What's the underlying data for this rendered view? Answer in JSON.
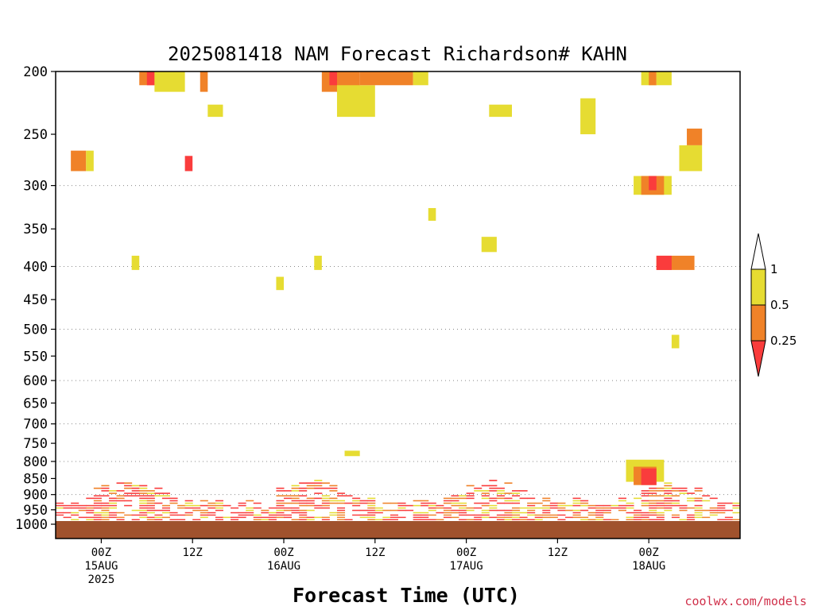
{
  "chart_data": {
    "type": "heatmap",
    "title": "2025081418 NAM Forecast Richardson# KAHN",
    "xlabel": "Forecast Time (UTC)",
    "ylabel": "",
    "y_scale": "log (pressure, inverted)",
    "ylim": [
      1000,
      200
    ],
    "y_ticks": [
      200,
      250,
      300,
      350,
      400,
      450,
      500,
      550,
      600,
      650,
      700,
      750,
      800,
      850,
      900,
      950,
      1000
    ],
    "grid_lines_at": [
      300,
      400,
      500,
      600,
      700,
      800,
      900
    ],
    "xlim": [
      "2025-08-14 18Z",
      "2025-08-18 12Z"
    ],
    "x_ticks": [
      {
        "at": "2025-08-15 00Z",
        "lines": [
          "00Z",
          "15AUG",
          "2025"
        ]
      },
      {
        "at": "2025-08-15 12Z",
        "lines": [
          "12Z"
        ]
      },
      {
        "at": "2025-08-16 00Z",
        "lines": [
          "00Z",
          "16AUG"
        ]
      },
      {
        "at": "2025-08-16 12Z",
        "lines": [
          "12Z"
        ]
      },
      {
        "at": "2025-08-17 00Z",
        "lines": [
          "00Z",
          "17AUG"
        ]
      },
      {
        "at": "2025-08-17 12Z",
        "lines": [
          "12Z"
        ]
      },
      {
        "at": "2025-08-18 00Z",
        "lines": [
          "00Z",
          "18AUG"
        ]
      }
    ],
    "legend": {
      "placement": "right",
      "levels": [
        "1",
        "0.5",
        "0.25"
      ],
      "bins": [
        {
          "range": "> 1",
          "color": "#ffffff"
        },
        {
          "range": "0.5 - 1",
          "color": "#e6dc32"
        },
        {
          "range": "0.25 - 0.5",
          "color": "#f08228"
        },
        {
          "range": "< 0.25",
          "color": "#fa3c3c"
        }
      ]
    },
    "surface_color": "#a0522d",
    "regions": [
      {
        "t0": "2025-08-15 05Z",
        "t1": "2025-08-15 07Z",
        "p0": 200,
        "p1": 210,
        "cat": "0.25-0.5"
      },
      {
        "t0": "2025-08-15 06Z",
        "t1": "2025-08-15 07Z",
        "p0": 200,
        "p1": 210,
        "cat": "<0.25"
      },
      {
        "t0": "2025-08-15 07Z",
        "t1": "2025-08-15 11Z",
        "p0": 200,
        "p1": 215,
        "cat": "0.5-1"
      },
      {
        "t0": "2025-08-15 13Z",
        "t1": "2025-08-15 14Z",
        "p0": 200,
        "p1": 215,
        "cat": "0.25-0.5"
      },
      {
        "t0": "2025-08-16 05Z",
        "t1": "2025-08-16 10Z",
        "p0": 200,
        "p1": 215,
        "cat": "0.25-0.5"
      },
      {
        "t0": "2025-08-16 06Z",
        "t1": "2025-08-16 07Z",
        "p0": 200,
        "p1": 210,
        "cat": "<0.25"
      },
      {
        "t0": "2025-08-16 07Z",
        "t1": "2025-08-16 12Z",
        "p0": 210,
        "p1": 235,
        "cat": "0.5-1"
      },
      {
        "t0": "2025-08-16 10Z",
        "t1": "2025-08-16 17Z",
        "p0": 200,
        "p1": 210,
        "cat": "0.25-0.5"
      },
      {
        "t0": "2025-08-16 17Z",
        "t1": "2025-08-16 19Z",
        "p0": 200,
        "p1": 210,
        "cat": "0.5-1"
      },
      {
        "t0": "2025-08-15 14Z",
        "t1": "2025-08-15 16Z",
        "p0": 225,
        "p1": 235,
        "cat": "0.5-1"
      },
      {
        "t0": "2025-08-17 03Z",
        "t1": "2025-08-17 06Z",
        "p0": 225,
        "p1": 235,
        "cat": "0.5-1"
      },
      {
        "t0": "2025-08-17 15Z",
        "t1": "2025-08-17 17Z",
        "p0": 220,
        "p1": 250,
        "cat": "0.5-1"
      },
      {
        "t0": "2025-08-17 23Z",
        "t1": "2025-08-18 01Z",
        "p0": 200,
        "p1": 210,
        "cat": "0.5-1"
      },
      {
        "t0": "2025-08-18 00Z",
        "t1": "2025-08-18 01Z",
        "p0": 200,
        "p1": 210,
        "cat": "0.25-0.5"
      },
      {
        "t0": "2025-08-18 01Z",
        "t1": "2025-08-18 03Z",
        "p0": 200,
        "p1": 210,
        "cat": "0.5-1"
      },
      {
        "t0": "2025-08-18 05Z",
        "t1": "2025-08-18 07Z",
        "p0": 245,
        "p1": 260,
        "cat": "0.25-0.5"
      },
      {
        "t0": "2025-08-18 04Z",
        "t1": "2025-08-18 07Z",
        "p0": 260,
        "p1": 285,
        "cat": "0.5-1"
      },
      {
        "t0": "2025-08-14 20Z",
        "t1": "2025-08-14 22Z",
        "p0": 265,
        "p1": 285,
        "cat": "0.25-0.5"
      },
      {
        "t0": "2025-08-14 22Z",
        "t1": "2025-08-14 23Z",
        "p0": 265,
        "p1": 285,
        "cat": "0.5-1"
      },
      {
        "t0": "2025-08-15 11Z",
        "t1": "2025-08-15 12Z",
        "p0": 270,
        "p1": 285,
        "cat": "<0.25"
      },
      {
        "t0": "2025-08-17 22Z",
        "t1": "2025-08-18 03Z",
        "p0": 290,
        "p1": 310,
        "cat": "0.5-1"
      },
      {
        "t0": "2025-08-17 23Z",
        "t1": "2025-08-18 02Z",
        "p0": 290,
        "p1": 310,
        "cat": "0.25-0.5"
      },
      {
        "t0": "2025-08-18 00Z",
        "t1": "2025-08-18 01Z",
        "p0": 290,
        "p1": 305,
        "cat": "<0.25"
      },
      {
        "t0": "2025-08-17 02Z",
        "t1": "2025-08-17 04Z",
        "p0": 360,
        "p1": 380,
        "cat": "0.5-1"
      },
      {
        "t0": "2025-08-16 19Z",
        "t1": "2025-08-16 20Z",
        "p0": 325,
        "p1": 340,
        "cat": "0.5-1"
      },
      {
        "t0": "2025-08-15 04Z",
        "t1": "2025-08-15 05Z",
        "p0": 385,
        "p1": 405,
        "cat": "0.5-1"
      },
      {
        "t0": "2025-08-16 04Z",
        "t1": "2025-08-16 05Z",
        "p0": 385,
        "p1": 405,
        "cat": "0.5-1"
      },
      {
        "t0": "2025-08-15 23Z",
        "t1": "2025-08-16 00Z",
        "p0": 415,
        "p1": 435,
        "cat": "0.5-1"
      },
      {
        "t0": "2025-08-18 01Z",
        "t1": "2025-08-18 06Z",
        "p0": 385,
        "p1": 405,
        "cat": "0.25-0.5"
      },
      {
        "t0": "2025-08-18 01Z",
        "t1": "2025-08-18 03Z",
        "p0": 385,
        "p1": 405,
        "cat": "<0.25"
      },
      {
        "t0": "2025-08-18 03Z",
        "t1": "2025-08-18 04Z",
        "p0": 510,
        "p1": 535,
        "cat": "0.5-1"
      },
      {
        "t0": "2025-08-16 08Z",
        "t1": "2025-08-16 10Z",
        "p0": 770,
        "p1": 785,
        "cat": "0.5-1"
      },
      {
        "t0": "2025-08-17 21Z",
        "t1": "2025-08-18 02Z",
        "p0": 795,
        "p1": 860,
        "cat": "0.5-1"
      },
      {
        "t0": "2025-08-17 22Z",
        "t1": "2025-08-18 01Z",
        "p0": 815,
        "p1": 870,
        "cat": "0.25-0.5"
      },
      {
        "t0": "2025-08-17 23Z",
        "t1": "2025-08-18 01Z",
        "p0": 820,
        "p1": 870,
        "cat": "<0.25"
      }
    ]
  },
  "credit": "coolwx.com/models"
}
